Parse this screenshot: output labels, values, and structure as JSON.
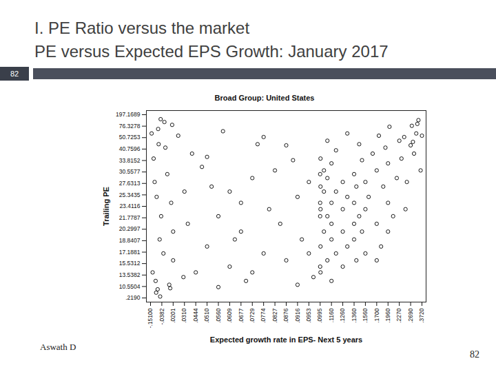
{
  "slide": {
    "title_lines": [
      "I. PE Ratio versus the market",
      "PE versus Expected EPS Growth: January 2017"
    ],
    "section_number": 82,
    "footer": "Aswath D",
    "page_number": 82
  },
  "chart_data": {
    "type": "scatter",
    "title": "Broad Group: United States",
    "x_label": "Expected growth rate in EPS- Next 5 years",
    "y_label": "Trailing PE",
    "color": "#000000",
    "marker": "circle-open",
    "grid": false,
    "xlim": [
      -0.151,
      0.372
    ],
    "xticks": [
      {
        "value": -0.151,
        "label": "-.15100"
      },
      {
        "value": -0.0382,
        "label": "-.0382"
      },
      {
        "value": 0.0201,
        "label": ".0201"
      },
      {
        "value": 0.031,
        "label": ".0310"
      },
      {
        "value": 0.0444,
        "label": ".0444"
      },
      {
        "value": 0.051,
        "label": ".0510"
      },
      {
        "value": 0.056,
        "label": ".0560"
      },
      {
        "value": 0.0609,
        "label": ".0609"
      },
      {
        "value": 0.0677,
        "label": ".0677"
      },
      {
        "value": 0.0729,
        "label": ".0729"
      },
      {
        "value": 0.0774,
        "label": ".0774"
      },
      {
        "value": 0.0827,
        "label": ".0827"
      },
      {
        "value": 0.0876,
        "label": ".0876"
      },
      {
        "value": 0.0916,
        "label": ".0916"
      },
      {
        "value": 0.0953,
        "label": ".0953"
      },
      {
        "value": 0.0995,
        "label": ".0995"
      },
      {
        "value": 0.116,
        "label": ".1160"
      },
      {
        "value": 0.126,
        "label": ".1260"
      },
      {
        "value": 0.136,
        "label": ".1360"
      },
      {
        "value": 0.156,
        "label": ".1560"
      },
      {
        "value": 0.17,
        "label": ".1700"
      },
      {
        "value": 0.196,
        "label": ".1960"
      },
      {
        "value": 0.227,
        "label": ".2270"
      },
      {
        "value": 0.269,
        "label": ".2690"
      },
      {
        "value": 0.372,
        "label": ".3720"
      }
    ],
    "ylim": [
      0.219,
      197.1689
    ],
    "yticks": [
      {
        "value": 0.219,
        "label": ".2190"
      },
      10.5504,
      13.5382,
      15.5312,
      17.1881,
      18.8407,
      20.2997,
      21.7787,
      23.4116,
      25.3435,
      27.6313,
      30.5577,
      33.8152,
      40.7596,
      50.7253,
      76.3278,
      197.1689
    ],
    "x": [
      -0.14,
      -0.12,
      -0.1,
      -0.09,
      -0.08,
      -0.07,
      -0.06,
      -0.05,
      -0.045,
      -0.13,
      -0.11,
      -0.095,
      -0.075,
      -0.055,
      -0.03,
      -0.02,
      -0.01,
      0.0,
      0.01,
      0.015,
      0.02,
      0.025,
      0.03,
      0.035,
      0.04,
      0.0201,
      0.031,
      0.0444,
      0.005,
      -0.025,
      0.048,
      0.051,
      0.053,
      0.056,
      0.058,
      0.0609,
      0.064,
      0.0677,
      0.07,
      0.0729,
      0.075,
      0.0774,
      0.08,
      0.0827,
      0.051,
      0.056,
      0.0609,
      0.0677,
      0.0729,
      0.0774,
      0.085,
      0.0876,
      0.09,
      0.0916,
      0.093,
      0.0953,
      0.097,
      0.0995,
      0.0876,
      0.0916,
      0.0953,
      0.0995,
      0.0995,
      0.0995,
      0.1,
      0.1,
      0.1,
      0.1,
      0.1,
      0.105,
      0.105,
      0.105,
      0.11,
      0.11,
      0.11,
      0.11,
      0.116,
      0.116,
      0.116,
      0.116,
      0.116,
      0.12,
      0.12,
      0.12,
      0.126,
      0.126,
      0.126,
      0.126,
      0.13,
      0.13,
      0.13,
      0.136,
      0.136,
      0.136,
      0.136,
      0.14,
      0.14,
      0.145,
      0.145,
      0.15,
      0.15,
      0.156,
      0.156,
      0.156,
      0.16,
      0.165,
      0.17,
      0.17,
      0.175,
      0.18,
      0.185,
      0.19,
      0.196,
      0.196,
      0.2,
      0.21,
      0.22,
      0.227,
      0.17,
      0.196,
      0.235,
      0.245,
      0.255,
      0.269,
      0.28,
      0.3,
      0.32,
      0.34,
      0.36,
      0.372,
      0.25,
      0.29,
      0.33
    ],
    "values": [
      60,
      35,
      12,
      25,
      8,
      45,
      19,
      150,
      22,
      14,
      28,
      5,
      70,
      1.5,
      17,
      42,
      30,
      11,
      24,
      90,
      16,
      55,
      13,
      21,
      38,
      20,
      26,
      14,
      9,
      120,
      32,
      18,
      27,
      22,
      65,
      15,
      19,
      24,
      12,
      29,
      45,
      17,
      23,
      31,
      36,
      10,
      26,
      20,
      14,
      52,
      21,
      16,
      34,
      25,
      19,
      28,
      13,
      22,
      44,
      11,
      17,
      30,
      24,
      15,
      18,
      23,
      27,
      35,
      14,
      20,
      26,
      31,
      16,
      22,
      29,
      48,
      19,
      24,
      21,
      33,
      12,
      17,
      26,
      40,
      20,
      23,
      28,
      15,
      18,
      25,
      60,
      21,
      30,
      19,
      24,
      27,
      16,
      22,
      45,
      20,
      34,
      23,
      17,
      28,
      25,
      38,
      21,
      31,
      55,
      18,
      27,
      42,
      24,
      33,
      75,
      22,
      29,
      48,
      16,
      20,
      35,
      52,
      28,
      44,
      80,
      38,
      60,
      140,
      31,
      55,
      23,
      47,
      100
    ]
  }
}
